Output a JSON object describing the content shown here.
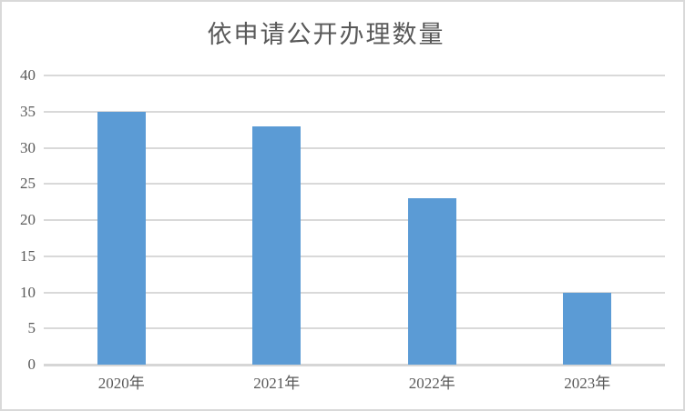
{
  "chart_data": {
    "type": "bar",
    "title": "依申请公开办理数量",
    "categories": [
      "2020年",
      "2021年",
      "2022年",
      "2023年"
    ],
    "values": [
      35,
      33,
      23,
      10
    ],
    "xlabel": "",
    "ylabel": "",
    "ylim": [
      0,
      40
    ],
    "ytick_step": 5,
    "ytick_labels": [
      "0",
      "5",
      "10",
      "15",
      "20",
      "25",
      "30",
      "35",
      "40"
    ],
    "grid": true,
    "legend_position": "none",
    "colors": {
      "bar": "#5b9bd5",
      "gridline": "#d9d9d9",
      "axis_line": "#d6d6d6",
      "text": "#595959",
      "frame_border": "#d9d9d9",
      "background": "#ffffff"
    }
  }
}
